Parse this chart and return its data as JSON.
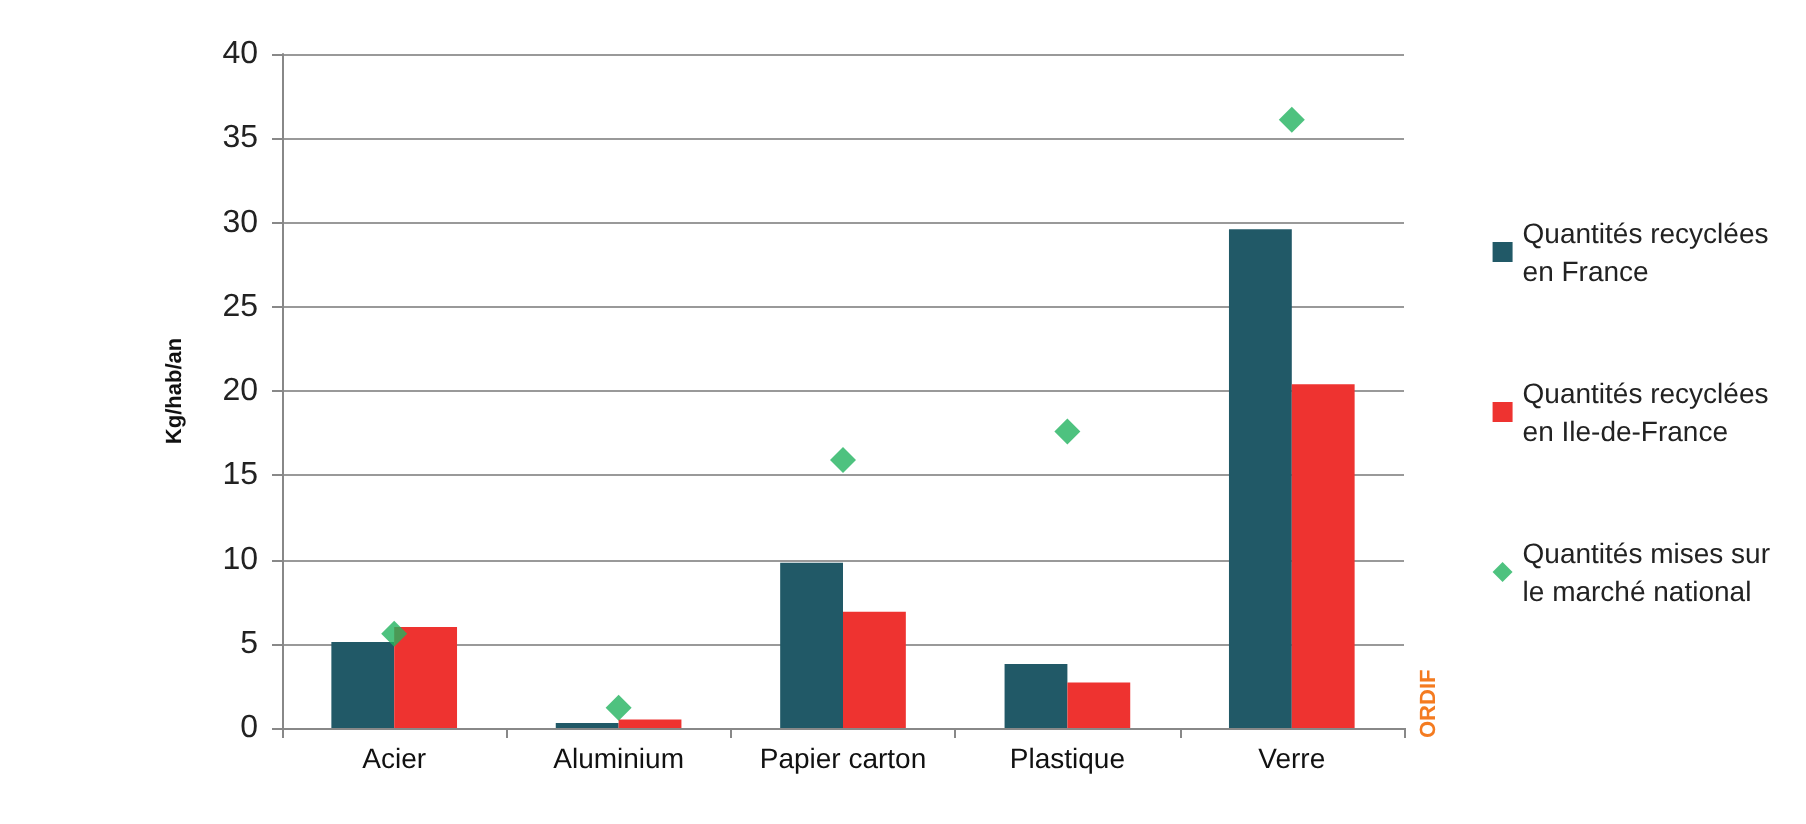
{
  "chart_data": {
    "type": "bar",
    "ylabel": "Kg/hab/an",
    "categories": [
      "Acier",
      "Aluminium",
      "Papier carton",
      "Plastique",
      "Verre"
    ],
    "series": [
      {
        "name": "Quantités recyclées en France",
        "color": "#215967",
        "values": [
          5.1,
          0.3,
          9.8,
          3.8,
          29.6
        ]
      },
      {
        "name": "Quantités recyclées en Ile-de-France",
        "color": "#ee3330",
        "values": [
          6.0,
          0.5,
          6.9,
          2.7,
          20.4
        ]
      },
      {
        "name": "Quantités mises sur le marché national",
        "type": "scatter",
        "color": "#22b35f",
        "values": [
          5.6,
          1.2,
          15.9,
          17.6,
          36.1
        ]
      }
    ],
    "ylim": [
      0,
      40
    ],
    "yticks": [
      0,
      5,
      10,
      15,
      20,
      25,
      30,
      35,
      40
    ],
    "grid": "y",
    "legend": "right",
    "marker": "diamond",
    "annotations": [
      "ORDIF"
    ]
  }
}
